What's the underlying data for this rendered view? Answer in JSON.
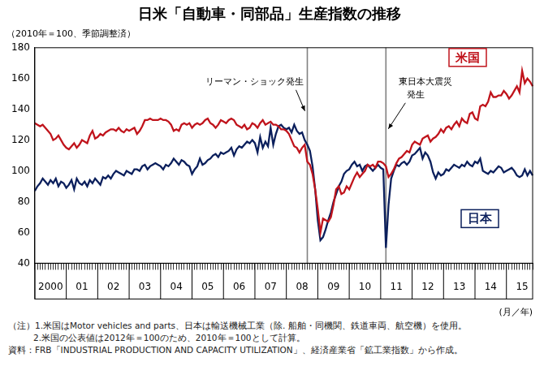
{
  "chart_data": {
    "type": "line",
    "title": "日米「自動車・同部品」生産指数の推移",
    "subtitle": "（2010年＝100、季節調整済）",
    "x_label": "(月／年)",
    "categories": [
      null,
      null,
      null,
      null,
      null,
      null,
      "2000",
      null,
      null,
      null,
      null,
      null,
      null,
      null,
      null,
      null,
      null,
      null,
      "01",
      null,
      null,
      null,
      null,
      null,
      null,
      null,
      null,
      null,
      null,
      null,
      "02",
      null,
      null,
      null,
      null,
      null,
      null,
      null,
      null,
      null,
      null,
      null,
      "03",
      null,
      null,
      null,
      null,
      null,
      null,
      null,
      null,
      null,
      null,
      null,
      "04",
      null,
      null,
      null,
      null,
      null,
      null,
      null,
      null,
      null,
      null,
      null,
      "05",
      null,
      null,
      null,
      null,
      null,
      null,
      null,
      null,
      null,
      null,
      null,
      "06",
      null,
      null,
      null,
      null,
      null,
      null,
      null,
      null,
      null,
      null,
      null,
      "07",
      null,
      null,
      null,
      null,
      null,
      null,
      null,
      null,
      null,
      null,
      null,
      "08",
      null,
      null,
      null,
      null,
      null,
      null,
      null,
      null,
      null,
      null,
      null,
      "09",
      null,
      null,
      null,
      null,
      null,
      null,
      null,
      null,
      null,
      null,
      null,
      "10",
      null,
      null,
      null,
      null,
      null,
      null,
      null,
      null,
      null,
      null,
      null,
      "11",
      null,
      null,
      null,
      null,
      null,
      null,
      null,
      null,
      null,
      null,
      null,
      "12",
      null,
      null,
      null,
      null,
      null,
      null,
      null,
      null,
      null,
      null,
      null,
      "13",
      null,
      null,
      null,
      null,
      null,
      null,
      null,
      null,
      null,
      null,
      null,
      "14",
      null,
      null,
      null,
      null,
      null,
      null,
      null,
      null,
      null,
      null,
      null,
      "15",
      null,
      null,
      null,
      null
    ],
    "series": [
      {
        "name": "米国",
        "color": "#c0141c",
        "values": [
          131,
          130,
          129,
          130,
          128,
          126,
          124,
          120,
          121,
          123,
          120,
          117,
          115,
          114,
          116,
          118,
          115,
          117,
          120,
          119,
          118,
          123,
          126,
          121,
          122,
          124,
          123,
          125,
          126,
          127,
          127,
          126,
          128,
          126,
          125,
          127,
          126,
          127,
          128,
          124,
          126,
          129,
          133,
          133,
          134,
          133,
          133,
          133,
          134,
          133,
          133,
          132,
          130,
          126,
          127,
          126,
          130,
          131,
          130,
          131,
          128,
          130,
          131,
          130,
          131,
          133,
          134,
          131,
          130,
          128,
          130,
          133,
          132,
          131,
          133,
          134,
          133,
          130,
          129,
          128,
          130,
          127,
          128,
          131,
          130,
          128,
          131,
          133,
          130,
          131,
          132,
          130,
          130,
          129,
          127,
          127,
          126,
          124,
          120,
          116,
          115,
          112,
          115,
          117,
          106,
          104,
          98,
          88,
          75,
          60,
          69,
          68,
          67,
          70,
          78,
          88,
          90,
          85,
          86,
          90,
          88,
          92,
          96,
          99,
          96,
          98,
          100,
          104,
          103,
          104,
          102,
          106,
          106,
          105,
          103,
          96,
          98,
          101,
          105,
          108,
          109,
          111,
          113,
          112,
          117,
          119,
          118,
          117,
          121,
          122,
          123,
          119,
          121,
          122,
          124,
          127,
          125,
          128,
          129,
          127,
          130,
          132,
          129,
          134,
          132,
          131,
          137,
          138,
          134,
          133,
          142,
          143,
          142,
          145,
          151,
          148,
          148,
          149,
          149,
          152,
          150,
          147,
          149,
          152,
          155,
          151,
          165,
          157,
          160,
          158,
          155
        ]
      },
      {
        "name": "日本",
        "color": "#0b1f5c",
        "values": [
          87,
          90,
          92,
          95,
          93,
          91,
          94,
          92,
          95,
          90,
          93,
          92,
          89,
          91,
          94,
          88,
          95,
          92,
          91,
          93,
          90,
          94,
          92,
          95,
          93,
          91,
          96,
          95,
          97,
          95,
          98,
          100,
          99,
          98,
          97,
          100,
          99,
          98,
          101,
          101,
          100,
          103,
          104,
          101,
          103,
          104,
          105,
          104,
          103,
          101,
          104,
          103,
          105,
          108,
          106,
          104,
          107,
          106,
          104,
          103,
          98,
          101,
          103,
          108,
          104,
          105,
          107,
          108,
          110,
          111,
          109,
          112,
          111,
          112,
          113,
          115,
          110,
          114,
          116,
          115,
          117,
          119,
          118,
          120,
          118,
          112,
          122,
          115,
          119,
          116,
          128,
          117,
          124,
          129,
          130,
          128,
          127,
          128,
          125,
          130,
          126,
          124,
          125,
          120,
          117,
          113,
          103,
          88,
          68,
          55,
          57,
          62,
          68,
          73,
          80,
          85,
          90,
          93,
          98,
          100,
          101,
          104,
          106,
          103,
          104,
          100,
          103,
          104,
          102,
          100,
          102,
          104,
          102,
          101,
          50,
          78,
          95,
          100,
          104,
          103,
          105,
          106,
          104,
          106,
          110,
          111,
          113,
          115,
          108,
          112,
          110,
          106,
          99,
          95,
          99,
          97,
          98,
          101,
          100,
          102,
          104,
          103,
          102,
          104,
          103,
          106,
          104,
          103,
          106,
          105,
          108,
          100,
          99,
          98,
          100,
          99,
          101,
          103,
          102,
          99,
          100,
          101,
          102,
          100,
          97,
          96,
          97,
          101,
          97,
          100,
          97
        ]
      }
    ],
    "ylim": [
      40,
      180
    ],
    "yticks": [
      40,
      60,
      80,
      100,
      120,
      140,
      160,
      180
    ],
    "grid": false,
    "annotations": [
      {
        "text": "リーマン・ショック発生",
        "x": 104
      },
      {
        "text": "東日本大震災\n発生",
        "x": 134
      }
    ],
    "notes": [
      "（注）1.米国はMotor vehicles and parts、日本は輸送機械工業（除. 船舶・同機関、鉄道車両、航空機）を使用。",
      "2.米国の公表値は2012年＝100のため、2010年＝100として計算。"
    ],
    "source": "資料：FRB「INDUSTRIAL PRODUCTION AND CAPACITY UTILIZATION」、経済産業省「鉱工業指数」から作成。"
  }
}
